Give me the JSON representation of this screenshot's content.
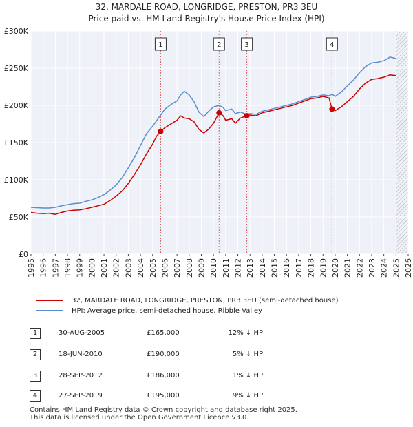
{
  "chart_data": {
    "type": "line",
    "title": "32, MARDALE ROAD, LONGRIDGE, PRESTON, PR3 3EU",
    "subtitle": "Price paid vs. HM Land Registry's House Price Index (HPI)",
    "ylim": [
      0,
      300000
    ],
    "xlim": [
      1995,
      2026
    ],
    "y_ticks": [
      {
        "value": 0,
        "label": "£0"
      },
      {
        "value": 50000,
        "label": "£50K"
      },
      {
        "value": 100000,
        "label": "£100K"
      },
      {
        "value": 150000,
        "label": "£150K"
      },
      {
        "value": 200000,
        "label": "£200K"
      },
      {
        "value": 250000,
        "label": "£250K"
      },
      {
        "value": 300000,
        "label": "£300K"
      }
    ],
    "x_ticks": [
      "1995",
      "1996",
      "1997",
      "1998",
      "1999",
      "2000",
      "2001",
      "2002",
      "2003",
      "2004",
      "2005",
      "2006",
      "2007",
      "2008",
      "2009",
      "2010",
      "2011",
      "2012",
      "2013",
      "2014",
      "2015",
      "2016",
      "2017",
      "2018",
      "2019",
      "2020",
      "2021",
      "2022",
      "2023",
      "2024",
      "2025",
      "2026"
    ],
    "series": [
      {
        "name": "32, MARDALE ROAD, LONGRIDGE, PRESTON, PR3 3EU (semi-detached house)",
        "color": "#cc0000",
        "points": [
          [
            1995,
            56000
          ],
          [
            1995.5,
            55000
          ],
          [
            1996,
            54500
          ],
          [
            1996.5,
            55000
          ],
          [
            1997,
            53500
          ],
          [
            1997.5,
            56000
          ],
          [
            1998,
            58000
          ],
          [
            1998.5,
            59000
          ],
          [
            1999,
            59500
          ],
          [
            1999.5,
            61000
          ],
          [
            2000,
            63000
          ],
          [
            2000.5,
            65000
          ],
          [
            2001,
            67000
          ],
          [
            2001.5,
            72000
          ],
          [
            2002,
            78000
          ],
          [
            2002.5,
            85000
          ],
          [
            2003,
            95000
          ],
          [
            2003.5,
            107000
          ],
          [
            2004,
            120000
          ],
          [
            2004.5,
            135000
          ],
          [
            2005,
            148000
          ],
          [
            2005.3,
            158000
          ],
          [
            2005.66,
            165000
          ],
          [
            2006,
            170000
          ],
          [
            2006.5,
            175000
          ],
          [
            2007,
            180000
          ],
          [
            2007.3,
            186000
          ],
          [
            2007.6,
            183000
          ],
          [
            2008,
            182000
          ],
          [
            2008.4,
            178000
          ],
          [
            2008.8,
            168000
          ],
          [
            2009.2,
            163000
          ],
          [
            2009.6,
            168000
          ],
          [
            2010,
            176000
          ],
          [
            2010.46,
            190000
          ],
          [
            2010.8,
            186000
          ],
          [
            2011,
            180000
          ],
          [
            2011.5,
            182000
          ],
          [
            2011.8,
            176000
          ],
          [
            2012.2,
            183000
          ],
          [
            2012.74,
            186000
          ],
          [
            2013,
            187000
          ],
          [
            2013.5,
            186000
          ],
          [
            2014,
            190000
          ],
          [
            2014.5,
            192000
          ],
          [
            2015,
            194000
          ],
          [
            2015.5,
            196000
          ],
          [
            2016,
            198000
          ],
          [
            2016.5,
            200000
          ],
          [
            2017,
            203000
          ],
          [
            2017.5,
            206000
          ],
          [
            2018,
            209000
          ],
          [
            2018.5,
            210000
          ],
          [
            2019,
            212000
          ],
          [
            2019.5,
            210000
          ],
          [
            2019.74,
            195000
          ],
          [
            2020,
            193000
          ],
          [
            2020.5,
            198000
          ],
          [
            2021,
            205000
          ],
          [
            2021.5,
            212000
          ],
          [
            2022,
            222000
          ],
          [
            2022.5,
            230000
          ],
          [
            2023,
            235000
          ],
          [
            2023.5,
            236000
          ],
          [
            2024,
            238000
          ],
          [
            2024.5,
            241000
          ],
          [
            2025,
            240000
          ]
        ]
      },
      {
        "name": "HPI: Average price, semi-detached house, Ribble Valley",
        "color": "#5b8ccf",
        "points": [
          [
            1995,
            63000
          ],
          [
            1995.5,
            62500
          ],
          [
            1996,
            62000
          ],
          [
            1996.5,
            62000
          ],
          [
            1997,
            63000
          ],
          [
            1997.5,
            65000
          ],
          [
            1998,
            66500
          ],
          [
            1998.5,
            68000
          ],
          [
            1999,
            68500
          ],
          [
            1999.5,
            71000
          ],
          [
            2000,
            73000
          ],
          [
            2000.5,
            76000
          ],
          [
            2001,
            80000
          ],
          [
            2001.5,
            86000
          ],
          [
            2002,
            93000
          ],
          [
            2002.5,
            103000
          ],
          [
            2003,
            116000
          ],
          [
            2003.5,
            130000
          ],
          [
            2004,
            146000
          ],
          [
            2004.5,
            162000
          ],
          [
            2005,
            172000
          ],
          [
            2005.66,
            187000
          ],
          [
            2006,
            195000
          ],
          [
            2006.5,
            201000
          ],
          [
            2007,
            206000
          ],
          [
            2007.3,
            214000
          ],
          [
            2007.6,
            219000
          ],
          [
            2008,
            214000
          ],
          [
            2008.4,
            205000
          ],
          [
            2008.8,
            191000
          ],
          [
            2009.2,
            185000
          ],
          [
            2009.6,
            192000
          ],
          [
            2010,
            198000
          ],
          [
            2010.46,
            200000
          ],
          [
            2010.8,
            197000
          ],
          [
            2011,
            193000
          ],
          [
            2011.5,
            195000
          ],
          [
            2011.8,
            189000
          ],
          [
            2012.2,
            191000
          ],
          [
            2012.74,
            188000
          ],
          [
            2013,
            189000
          ],
          [
            2013.5,
            188000
          ],
          [
            2014,
            192000
          ],
          [
            2014.5,
            194000
          ],
          [
            2015,
            196000
          ],
          [
            2015.5,
            198000
          ],
          [
            2016,
            200000
          ],
          [
            2016.5,
            202000
          ],
          [
            2017,
            205000
          ],
          [
            2017.5,
            208000
          ],
          [
            2018,
            211000
          ],
          [
            2018.5,
            212000
          ],
          [
            2019,
            214000
          ],
          [
            2019.5,
            213000
          ],
          [
            2019.74,
            215000
          ],
          [
            2020,
            212000
          ],
          [
            2020.5,
            218000
          ],
          [
            2021,
            226000
          ],
          [
            2021.5,
            234000
          ],
          [
            2022,
            244000
          ],
          [
            2022.5,
            252000
          ],
          [
            2023,
            257000
          ],
          [
            2023.5,
            258000
          ],
          [
            2024,
            260000
          ],
          [
            2024.5,
            265000
          ],
          [
            2025,
            263000
          ]
        ]
      }
    ],
    "transactions": [
      {
        "num": "1",
        "x": 2005.66,
        "value": 165000
      },
      {
        "num": "2",
        "x": 2010.46,
        "value": 190000
      },
      {
        "num": "3",
        "x": 2012.74,
        "value": 186000
      },
      {
        "num": "4",
        "x": 2019.74,
        "value": 195000
      }
    ],
    "hatch_from": 2025.0
  },
  "legend": {
    "property_label": "32, MARDALE ROAD, LONGRIDGE, PRESTON, PR3 3EU (semi-detached house)",
    "hpi_label": "HPI: Average price, semi-detached house, Ribble Valley",
    "property_color": "#cc0000",
    "hpi_color": "#5b8ccf"
  },
  "table": [
    {
      "num": "1",
      "date": "30-AUG-2005",
      "price": "£165,000",
      "hpi": "12% ↓ HPI"
    },
    {
      "num": "2",
      "date": "18-JUN-2010",
      "price": "£190,000",
      "hpi": "5% ↓ HPI"
    },
    {
      "num": "3",
      "date": "28-SEP-2012",
      "price": "£186,000",
      "hpi": "1% ↓ HPI"
    },
    {
      "num": "4",
      "date": "27-SEP-2019",
      "price": "£195,000",
      "hpi": "9% ↓ HPI"
    }
  ],
  "footer": {
    "line1": "Contains HM Land Registry data © Crown copyright and database right 2025.",
    "line2": "This data is licensed under the Open Government Licence v3.0."
  }
}
